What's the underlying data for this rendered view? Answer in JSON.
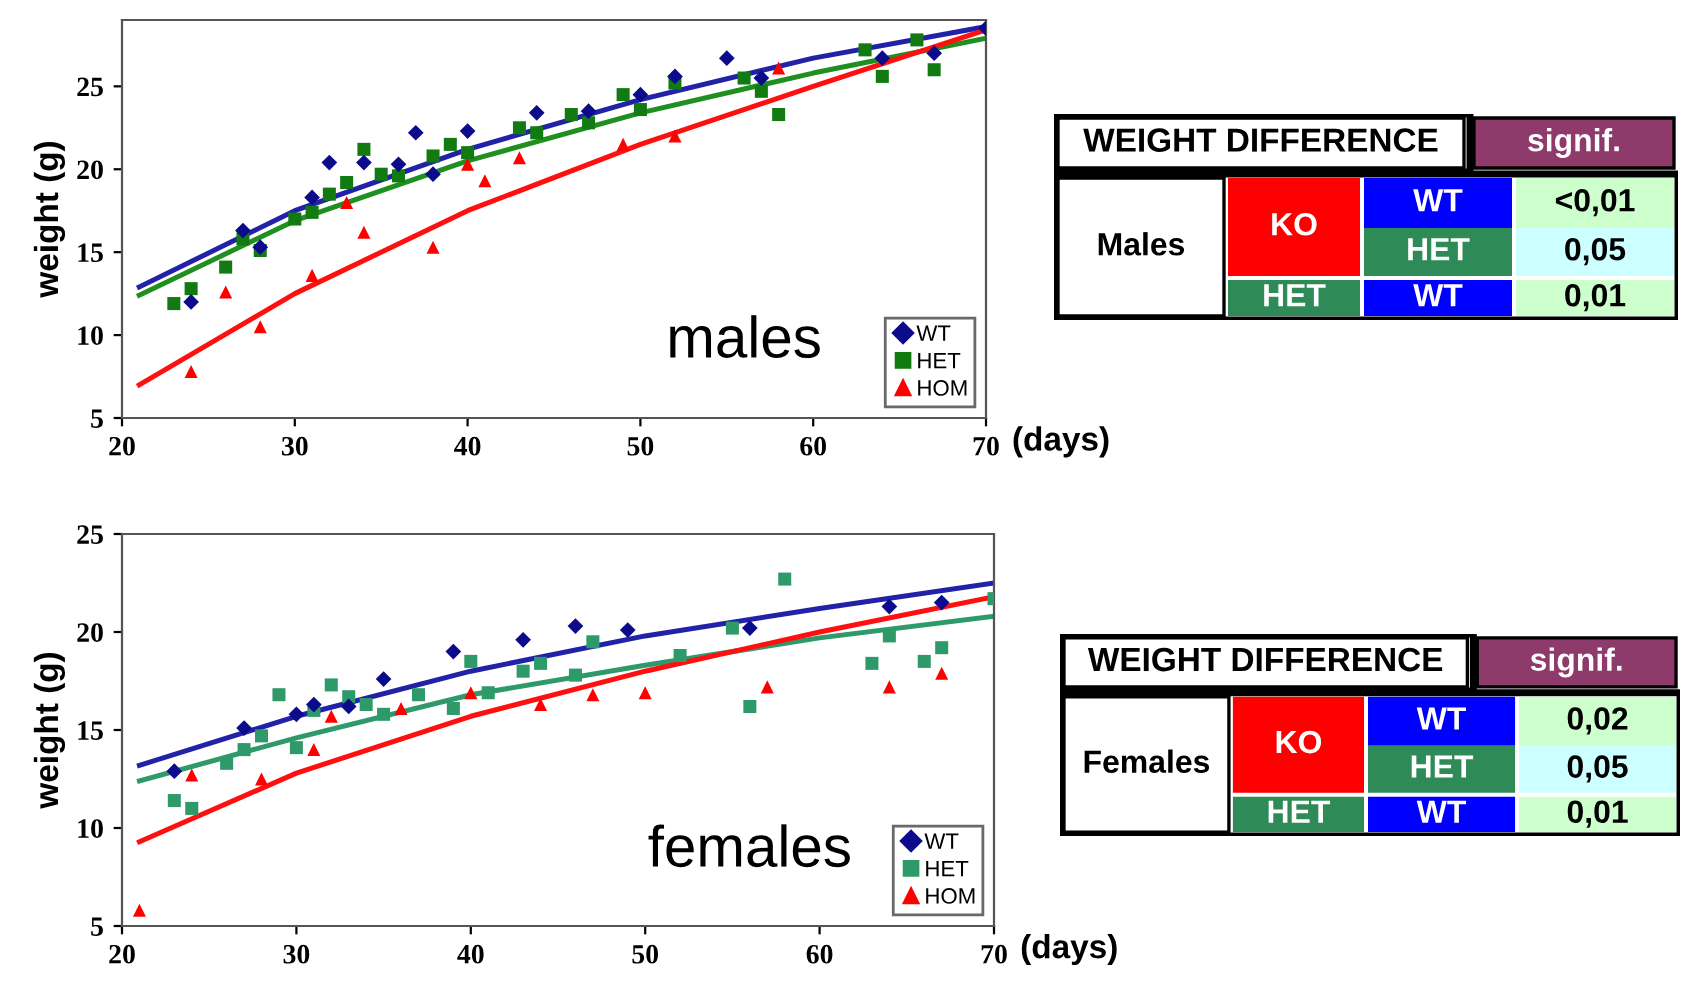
{
  "chart_data": [
    {
      "type": "scatter",
      "ylabel": "weight (g)",
      "xlabel": "(days)",
      "annotations": [
        "males"
      ],
      "xlim": [
        20,
        70
      ],
      "ylim": [
        5,
        29
      ],
      "xticks": [
        20,
        30,
        40,
        50,
        60,
        70
      ],
      "yticks": [
        5,
        10,
        15,
        20,
        25
      ],
      "grid": false,
      "legend": "bottom right",
      "series": [
        {
          "name": "WT",
          "color": "#0b0b8c",
          "marker": "diamond",
          "x": [
            24,
            27,
            28,
            31,
            32,
            34,
            36,
            37,
            38,
            40,
            44,
            47,
            50,
            52,
            55,
            57,
            64,
            67,
            70
          ],
          "values": [
            12,
            16.3,
            15.3,
            18.3,
            20.4,
            20.4,
            20.3,
            22.2,
            19.7,
            22.3,
            23.4,
            23.5,
            24.5,
            25.6,
            26.7,
            25.5,
            26.7,
            27,
            28.5
          ]
        },
        {
          "name": "HET",
          "color": "#117a11",
          "marker": "square",
          "x": [
            23,
            24,
            26,
            27,
            28,
            30,
            31,
            32,
            33,
            34,
            35,
            36,
            38,
            39,
            40,
            43,
            44,
            46,
            47,
            49,
            50,
            52,
            56,
            57,
            58,
            63,
            64,
            66,
            67
          ],
          "values": [
            11.9,
            12.8,
            14.1,
            15.8,
            15.1,
            17,
            17.4,
            18.5,
            19.2,
            21.2,
            19.7,
            19.6,
            20.8,
            21.5,
            21,
            22.5,
            22.2,
            23.3,
            22.8,
            24.5,
            23.6,
            25.2,
            25.5,
            24.7,
            23.3,
            27.2,
            25.6,
            27.8,
            26
          ]
        },
        {
          "name": "HOM",
          "color": "#ff0000",
          "marker": "triangle",
          "x": [
            24,
            26,
            28,
            31,
            33,
            34,
            38,
            40,
            41,
            43,
            49,
            52,
            58
          ],
          "values": [
            7.8,
            12.6,
            10.5,
            13.6,
            18,
            16.2,
            15.3,
            20.3,
            19.3,
            20.7,
            21.5,
            22,
            26.1
          ]
        },
        {
          "type": "line",
          "color": "#2222a8",
          "x": [
            21,
            30,
            40,
            50,
            60,
            70
          ],
          "values": [
            12.9,
            17.5,
            21.2,
            24.2,
            26.7,
            28.6
          ]
        },
        {
          "type": "line",
          "color": "#1f8f1f",
          "x": [
            21,
            30,
            40,
            50,
            60,
            70
          ],
          "values": [
            12.4,
            16.9,
            20.5,
            23.4,
            25.8,
            27.9
          ]
        },
        {
          "type": "line",
          "color": "#ff1010",
          "x": [
            21,
            30,
            40,
            50,
            60,
            70
          ],
          "values": [
            7,
            12.5,
            17.5,
            21.5,
            25,
            28.4
          ]
        }
      ]
    },
    {
      "type": "other",
      "title": "WEIGHT DIFFERENCE",
      "subtitle": "signif.",
      "annotations": [
        "Males",
        "KO",
        "WT",
        "HET",
        "HET",
        "WT",
        "<0,01",
        "0,05",
        "0,01"
      ],
      "colors": [
        "#ffffff",
        "#8e3a6a",
        "#ffffff",
        "#ff0000",
        "#0000ff",
        "#2e8b57",
        "#2e8b57",
        "#0000ff",
        "#ccffcc",
        "#ccffff",
        "#ccffcc"
      ]
    },
    {
      "type": "scatter",
      "ylabel": "weight (g)",
      "xlabel": "(days)",
      "annotations": [
        "females"
      ],
      "xlim": [
        20,
        70
      ],
      "ylim": [
        5,
        25
      ],
      "xticks": [
        20,
        30,
        40,
        50,
        60,
        70
      ],
      "yticks": [
        5,
        10,
        15,
        20,
        25
      ],
      "grid": false,
      "legend": "bottom right",
      "series": [
        {
          "name": "WT",
          "color": "#0b0b8c",
          "marker": "diamond",
          "x": [
            23,
            27,
            30,
            31,
            33,
            35,
            39,
            43,
            46,
            49,
            56,
            64,
            67
          ],
          "values": [
            12.9,
            15.1,
            15.8,
            16.3,
            16.2,
            17.6,
            19,
            19.6,
            20.3,
            20.1,
            20.2,
            21.3,
            21.5
          ]
        },
        {
          "name": "HET",
          "color": "#2e9a6a",
          "marker": "square",
          "x": [
            23,
            24,
            26,
            27,
            28,
            29,
            30,
            31,
            32,
            33,
            34,
            35,
            37,
            39,
            40,
            41,
            43,
            44,
            46,
            47,
            52,
            55,
            56,
            58,
            63,
            64,
            66,
            67,
            70
          ],
          "values": [
            11.4,
            11,
            13.3,
            14,
            14.7,
            16.8,
            14.1,
            16,
            17.3,
            16.7,
            16.3,
            15.8,
            16.8,
            16.1,
            18.5,
            16.9,
            18,
            18.4,
            17.8,
            19.5,
            18.8,
            20.2,
            16.2,
            22.7,
            18.4,
            19.8,
            18.5,
            19.2,
            21.7
          ]
        },
        {
          "name": "HOM",
          "color": "#ff0000",
          "marker": "triangle",
          "x": [
            21,
            24,
            28,
            31,
            32,
            36,
            40,
            44,
            47,
            50,
            57,
            64,
            67
          ],
          "values": [
            5.8,
            12.7,
            12.5,
            14,
            15.7,
            16.1,
            16.9,
            16.3,
            16.8,
            16.9,
            17.2,
            17.2,
            17.9
          ]
        },
        {
          "type": "line",
          "color": "#2222a8",
          "x": [
            21,
            30,
            40,
            50,
            60,
            70
          ],
          "values": [
            13.2,
            15.7,
            18,
            19.8,
            21.2,
            22.5
          ]
        },
        {
          "type": "line",
          "color": "#2e9a6a",
          "x": [
            21,
            30,
            40,
            50,
            60,
            70
          ],
          "values": [
            12.4,
            14.6,
            16.8,
            18.3,
            19.7,
            20.8
          ]
        },
        {
          "type": "line",
          "color": "#ff1010",
          "x": [
            21,
            30,
            40,
            50,
            60,
            70
          ],
          "values": [
            9.3,
            12.8,
            15.7,
            18,
            20,
            21.8
          ]
        }
      ]
    },
    {
      "type": "other",
      "title": "WEIGHT DIFFERENCE",
      "subtitle": "signif.",
      "annotations": [
        "Females",
        "KO",
        "WT",
        "HET",
        "HET",
        "WT",
        "0,02",
        "0,05",
        "0,01"
      ],
      "colors": [
        "#ffffff",
        "#8e3a6a",
        "#ffffff",
        "#ff0000",
        "#0000ff",
        "#2e8b57",
        "#2e8b57",
        "#0000ff",
        "#ccffcc",
        "#ccffff",
        "#ccffcc"
      ]
    }
  ]
}
